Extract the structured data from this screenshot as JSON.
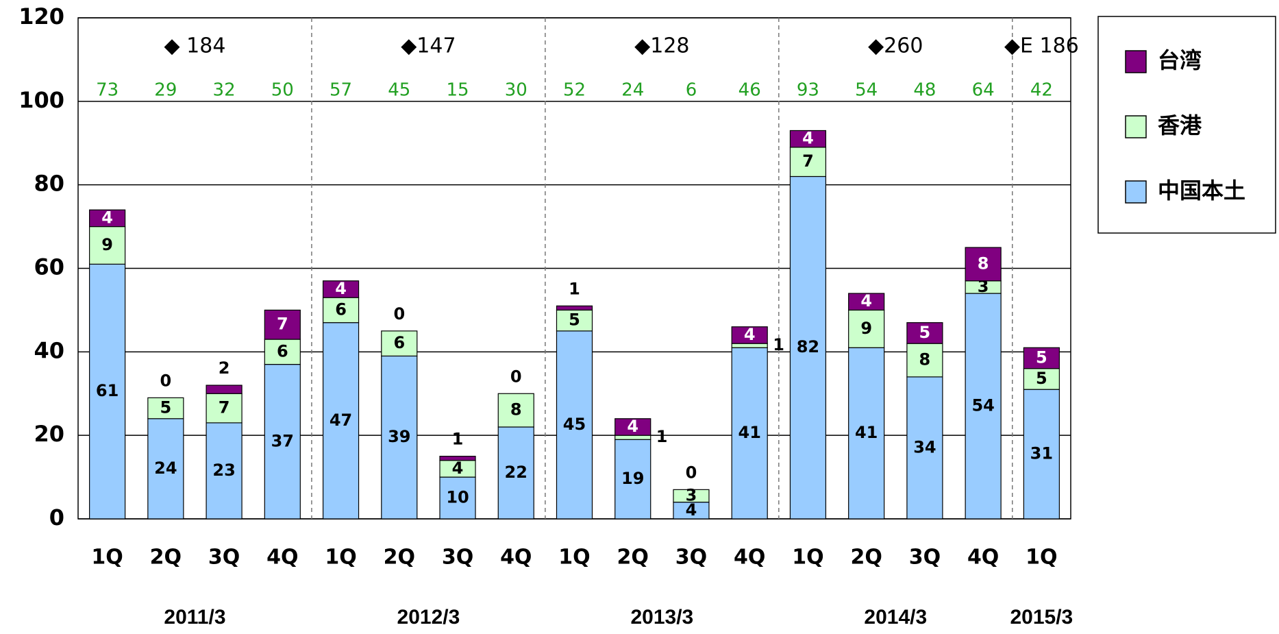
{
  "chart_data": {
    "type": "stacked_bar",
    "categories": [
      "1Q",
      "2Q",
      "3Q",
      "4Q",
      "1Q",
      "2Q",
      "3Q",
      "4Q",
      "1Q",
      "2Q",
      "3Q",
      "4Q",
      "1Q",
      "2Q",
      "3Q",
      "4Q",
      "1Q"
    ],
    "series": [
      {
        "name": "中国本土",
        "color": "#99ccff",
        "values": [
          61,
          24,
          23,
          37,
          47,
          39,
          10,
          22,
          45,
          19,
          4,
          41,
          82,
          41,
          34,
          54,
          31
        ]
      },
      {
        "name": "香港",
        "color": "#ccffcc",
        "values": [
          9,
          5,
          7,
          6,
          6,
          6,
          4,
          8,
          5,
          1,
          3,
          1,
          7,
          9,
          8,
          3,
          5
        ]
      },
      {
        "name": "台湾",
        "color": "#800080",
        "values": [
          4,
          0,
          2,
          7,
          4,
          0,
          1,
          0,
          1,
          4,
          0,
          4,
          4,
          4,
          5,
          8,
          5
        ]
      }
    ],
    "totals": [
      73,
      29,
      32,
      50,
      57,
      45,
      15,
      30,
      52,
      24,
      6,
      46,
      93,
      54,
      48,
      64,
      42
    ],
    "groups": [
      {
        "label": "2011/3",
        "annotation": "◆ 184"
      },
      {
        "label": "2012/3",
        "annotation": "◆147"
      },
      {
        "label": "2013/3",
        "annotation": "◆128"
      },
      {
        "label": "2014/3",
        "annotation": "◆260"
      },
      {
        "label": "2015/3",
        "annotation": "◆E 186"
      }
    ],
    "ylim": [
      0,
      120
    ],
    "yticks": [
      0,
      20,
      40,
      60,
      80,
      100,
      120
    ],
    "grid": true,
    "legend": "right"
  }
}
